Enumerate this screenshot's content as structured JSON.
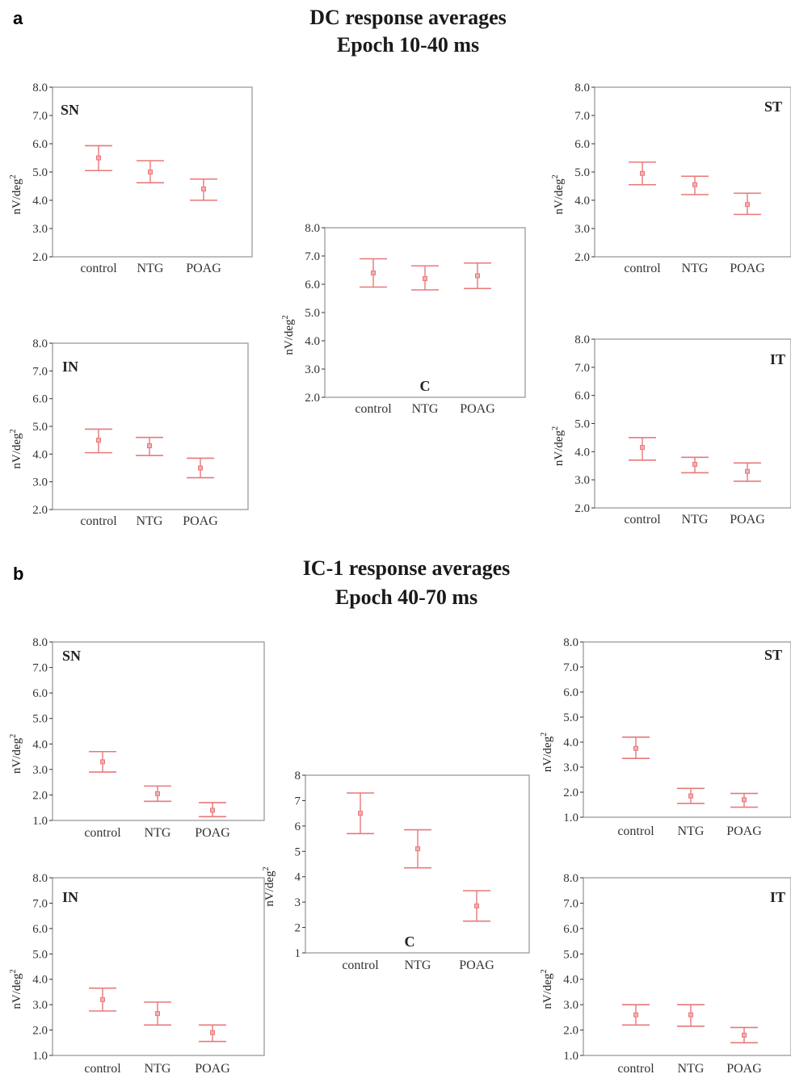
{
  "panels": [
    {
      "label": "a",
      "title_line1": "DC response averages",
      "title_line2": "Epoch 10-40 ms"
    },
    {
      "label": "b",
      "title_line1": "IC-1 response averages",
      "title_line2": "Epoch 40-70 ms"
    }
  ],
  "colors": {
    "errorbar": "#e8787a",
    "frame": "#9a9a9a",
    "text": "#222222"
  },
  "chart_data": [
    {
      "panel": "a",
      "region": "SN",
      "type": "errorbar",
      "categories": [
        "control",
        "NTG",
        "POAG"
      ],
      "ylabel": "nV/deg2",
      "ylim": [
        2,
        8
      ],
      "yticks": [
        "2.0",
        "3.0",
        "4.0",
        "5.0",
        "6.0",
        "7.0",
        "8.0"
      ],
      "mean": [
        5.5,
        5.0,
        4.4
      ],
      "lower": [
        5.05,
        4.62,
        4.0
      ],
      "upper": [
        5.93,
        5.4,
        4.75
      ]
    },
    {
      "panel": "a",
      "region": "ST",
      "type": "errorbar",
      "categories": [
        "control",
        "NTG",
        "POAG"
      ],
      "ylabel": "nV/deg2",
      "ylim": [
        2,
        8
      ],
      "yticks": [
        "2.0",
        "3.0",
        "4.0",
        "5.0",
        "6.0",
        "7.0",
        "8.0"
      ],
      "mean": [
        4.95,
        4.55,
        3.85
      ],
      "lower": [
        4.55,
        4.2,
        3.5
      ],
      "upper": [
        5.35,
        4.85,
        4.25
      ]
    },
    {
      "panel": "a",
      "region": "C",
      "type": "errorbar",
      "categories": [
        "control",
        "NTG",
        "POAG"
      ],
      "ylabel": "nV/deg2",
      "ylim": [
        2,
        8
      ],
      "yticks": [
        "2.0",
        "3.0",
        "4.0",
        "5.0",
        "6.0",
        "7.0",
        "8.0"
      ],
      "mean": [
        6.4,
        6.2,
        6.3
      ],
      "lower": [
        5.9,
        5.8,
        5.85
      ],
      "upper": [
        6.9,
        6.65,
        6.75
      ]
    },
    {
      "panel": "a",
      "region": "IN",
      "type": "errorbar",
      "categories": [
        "control",
        "NTG",
        "POAG"
      ],
      "ylabel": "nV/deg2",
      "ylim": [
        2,
        8
      ],
      "yticks": [
        "2.0",
        "3.0",
        "4.0",
        "5.0",
        "6.0",
        "7.0",
        "8.0"
      ],
      "mean": [
        4.5,
        4.3,
        3.5
      ],
      "lower": [
        4.05,
        3.95,
        3.15
      ],
      "upper": [
        4.9,
        4.6,
        3.85
      ]
    },
    {
      "panel": "a",
      "region": "IT",
      "type": "errorbar",
      "categories": [
        "control",
        "NTG",
        "POAG"
      ],
      "ylabel": "nV/deg2",
      "ylim": [
        2,
        8
      ],
      "yticks": [
        "2.0",
        "3.0",
        "4.0",
        "5.0",
        "6.0",
        "7.0",
        "8.0"
      ],
      "mean": [
        4.15,
        3.55,
        3.3
      ],
      "lower": [
        3.7,
        3.25,
        2.95
      ],
      "upper": [
        4.5,
        3.8,
        3.6
      ]
    },
    {
      "panel": "b",
      "region": "SN",
      "type": "errorbar",
      "categories": [
        "control",
        "NTG",
        "POAG"
      ],
      "ylabel": "nV/deg2",
      "ylim": [
        1,
        8
      ],
      "yticks": [
        "1.0",
        "2.0",
        "3.0",
        "4.0",
        "5.0",
        "6.0",
        "7.0",
        "8.0"
      ],
      "mean": [
        3.3,
        2.05,
        1.4
      ],
      "lower": [
        2.9,
        1.75,
        1.15
      ],
      "upper": [
        3.7,
        2.35,
        1.7
      ]
    },
    {
      "panel": "b",
      "region": "ST",
      "type": "errorbar",
      "categories": [
        "control",
        "NTG",
        "POAG"
      ],
      "ylabel": "nV/deg2",
      "ylim": [
        1,
        8
      ],
      "yticks": [
        "1.0",
        "2.0",
        "3.0",
        "4.0",
        "5.0",
        "6.0",
        "7.0",
        "8.0"
      ],
      "mean": [
        3.75,
        1.85,
        1.7
      ],
      "lower": [
        3.35,
        1.55,
        1.4
      ],
      "upper": [
        4.2,
        2.15,
        1.95
      ]
    },
    {
      "panel": "b",
      "region": "C",
      "type": "errorbar",
      "categories": [
        "control",
        "NTG",
        "POAG"
      ],
      "ylabel": "nV/deg2",
      "ylim": [
        1,
        8
      ],
      "yticks": [
        "1",
        "2",
        "3",
        "4",
        "5",
        "6",
        "7",
        "8"
      ],
      "mean": [
        6.5,
        5.1,
        2.85
      ],
      "lower": [
        5.7,
        4.35,
        2.25
      ],
      "upper": [
        7.3,
        5.85,
        3.45
      ]
    },
    {
      "panel": "b",
      "region": "IN",
      "type": "errorbar",
      "categories": [
        "control",
        "NTG",
        "POAG"
      ],
      "ylabel": "nV/deg2",
      "ylim": [
        1,
        8
      ],
      "yticks": [
        "1.0",
        "2.0",
        "3.0",
        "4.0",
        "5.0",
        "6.0",
        "7.0",
        "8.0"
      ],
      "mean": [
        3.2,
        2.65,
        1.9
      ],
      "lower": [
        2.75,
        2.2,
        1.55
      ],
      "upper": [
        3.65,
        3.1,
        2.2
      ]
    },
    {
      "panel": "b",
      "region": "IT",
      "type": "errorbar",
      "categories": [
        "control",
        "NTG",
        "POAG"
      ],
      "ylabel": "nV/deg2",
      "ylim": [
        1,
        8
      ],
      "yticks": [
        "1.0",
        "2.0",
        "3.0",
        "4.0",
        "5.0",
        "6.0",
        "7.0",
        "8.0"
      ],
      "mean": [
        2.6,
        2.6,
        1.8
      ],
      "lower": [
        2.2,
        2.15,
        1.5
      ],
      "upper": [
        3.0,
        3.0,
        2.1
      ]
    }
  ]
}
